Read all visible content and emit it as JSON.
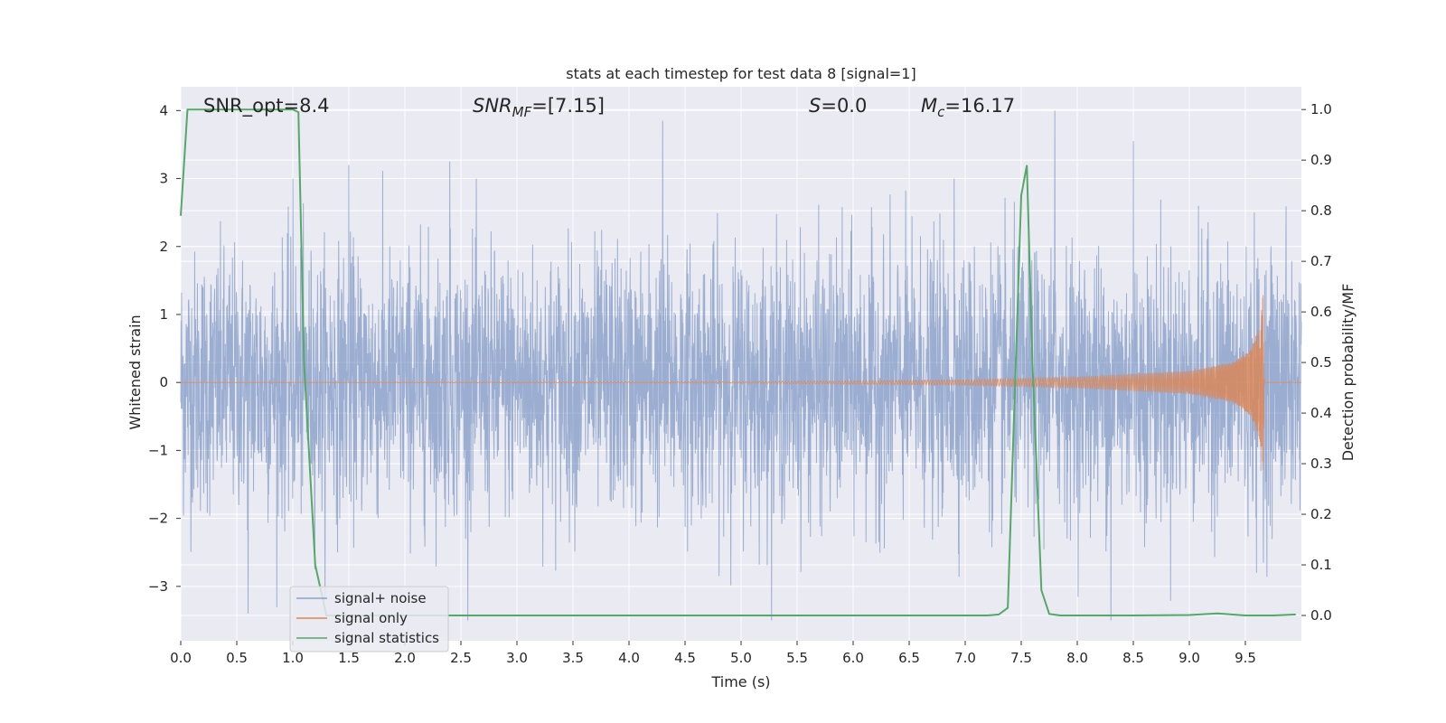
{
  "chart_data": {
    "type": "line",
    "title": "stats at each timestep for test data 8 [signal=1]",
    "xlabel": "Time (s)",
    "ylabel_left": "Whitened strain",
    "ylabel_right": "Detection probability/MF",
    "xlim": [
      0.0,
      10.0
    ],
    "ylim_left": [
      -3.8,
      4.35
    ],
    "ylim_right": [
      -0.05,
      1.045
    ],
    "x_ticks": [
      "0.0",
      "0.5",
      "1.0",
      "1.5",
      "2.0",
      "2.5",
      "3.0",
      "3.5",
      "4.0",
      "4.5",
      "5.0",
      "5.5",
      "6.0",
      "6.5",
      "7.0",
      "7.5",
      "8.0",
      "8.5",
      "9.0",
      "9.5"
    ],
    "y_ticks_left": [
      "−3",
      "−2",
      "−1",
      "0",
      "1",
      "2",
      "3",
      "4"
    ],
    "y_ticks_right": [
      "0.0",
      "0.1",
      "0.2",
      "0.3",
      "0.4",
      "0.5",
      "0.6",
      "0.7",
      "0.8",
      "0.9",
      "1.0"
    ],
    "grid": true,
    "legend_placement": "lower-left",
    "colors": {
      "plot_background": "#eaeaf2",
      "grid": "#ffffff",
      "noise": "#4c72b0",
      "signal": "#dd8452",
      "statistics": "#55a868"
    },
    "annotations": {
      "snr_opt": "SNR_opt=8.4",
      "snr_mf_base": "SNR",
      "snr_mf_sub": "MF",
      "snr_mf_value": "=[7.15]",
      "s_symbol": "S",
      "s_value": "=0.0",
      "mc_symbol": "M",
      "mc_sub": "c",
      "mc_value": "=16.17"
    },
    "series": [
      {
        "name": "signal+ noise",
        "axis": "left",
        "style": "dense noisy time series, values mostly within ±2, extremes ≈ -3.4 to 4.0",
        "peaks_x": [
          0.6,
          1.0,
          1.5,
          2.4,
          4.3,
          6.9,
          7.8,
          8.3,
          8.5,
          9.6
        ],
        "peaks_y": [
          -3.4,
          3.0,
          3.2,
          3.25,
          3.85,
          3.0,
          4.0,
          -3.5,
          3.55,
          -2.8
        ],
        "amplitude_range": [
          -3.5,
          4.0
        ]
      },
      {
        "name": "signal only",
        "axis": "left",
        "style": "chirp with growing amplitude ending at merger",
        "x": [
          0.0,
          5.0,
          7.0,
          8.0,
          9.0,
          9.4,
          9.55,
          9.63,
          9.66,
          9.67,
          10.0
        ],
        "amplitude": [
          0.0,
          0.01,
          0.04,
          0.08,
          0.17,
          0.3,
          0.5,
          0.85,
          1.35,
          0.0,
          0.0
        ]
      },
      {
        "name": "signal statistics",
        "axis": "right",
        "x": [
          0.0,
          0.06,
          0.12,
          0.5,
          1.0,
          1.05,
          1.1,
          1.2,
          1.3,
          2.0,
          3.0,
          4.0,
          5.0,
          6.0,
          7.0,
          7.2,
          7.3,
          7.38,
          7.5,
          7.55,
          7.6,
          7.68,
          7.75,
          7.85,
          8.0,
          8.5,
          9.0,
          9.25,
          9.5,
          9.75,
          9.95
        ],
        "y": [
          0.79,
          1.0,
          1.0,
          1.0,
          1.0,
          0.995,
          0.5,
          0.1,
          0.0,
          0.0,
          0.0,
          0.0,
          0.0,
          0.0,
          0.0,
          0.0,
          0.002,
          0.015,
          0.83,
          0.89,
          0.5,
          0.05,
          0.003,
          0.0,
          0.0,
          0.0,
          0.001,
          0.004,
          0.0,
          0.0,
          0.002
        ]
      }
    ]
  }
}
